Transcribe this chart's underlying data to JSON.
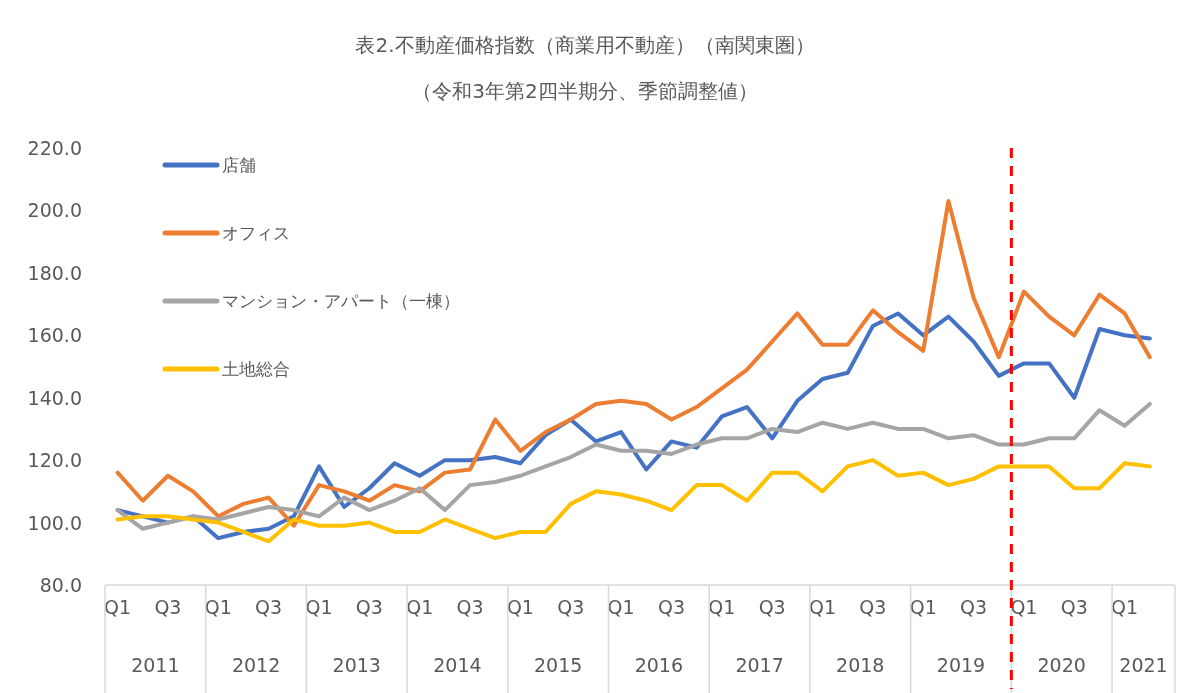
{
  "chart_data": {
    "type": "line",
    "title": "表2.不動産価格指数（商業用不動産）（南関東圏）",
    "subtitle": "（令和3年第2四半期分、季節調整値）",
    "categories": [
      "Q1",
      null,
      "Q3",
      null,
      "Q1",
      null,
      "Q3",
      null,
      "Q1",
      null,
      "Q3",
      null,
      "Q1",
      null,
      "Q3",
      null,
      "Q1",
      null,
      "Q3",
      null,
      "Q1",
      null,
      "Q3",
      null,
      "Q1",
      null,
      "Q3",
      null,
      "Q1",
      null,
      "Q3",
      null,
      "Q1",
      null,
      "Q3",
      null,
      "Q1",
      null,
      "Q3",
      null,
      "Q1",
      null
    ],
    "series": [
      {
        "name": "店舗",
        "color": "#4472c4",
        "values": [
          104,
          102,
          100,
          102,
          95,
          97,
          98,
          102,
          118,
          105,
          111,
          119,
          115,
          120,
          120,
          121,
          119,
          128,
          133,
          126,
          129,
          117,
          126,
          124,
          134,
          137,
          127,
          139,
          146,
          148,
          163,
          167,
          160,
          166,
          158,
          147,
          151,
          151,
          140,
          162,
          160,
          159
        ]
      },
      {
        "name": "オフィス",
        "color": "#ed7d31",
        "values": [
          116,
          107,
          115,
          110,
          102,
          106,
          108,
          99,
          112,
          110,
          107,
          112,
          110,
          116,
          117,
          133,
          123,
          129,
          133,
          138,
          139,
          138,
          133,
          137,
          143,
          149,
          158,
          167,
          157,
          157,
          168,
          161,
          155,
          203,
          172,
          153,
          174,
          166,
          160,
          173,
          167,
          153
        ]
      },
      {
        "name": "マンション・アパート（一棟）",
        "color": "#a5a5a5",
        "values": [
          104,
          98,
          100,
          102,
          101,
          103,
          105,
          104,
          102,
          108,
          104,
          107,
          111,
          104,
          112,
          113,
          115,
          118,
          121,
          125,
          123,
          123,
          122,
          125,
          127,
          127,
          130,
          129,
          132,
          130,
          132,
          130,
          130,
          127,
          128,
          125,
          125,
          127,
          127,
          136,
          131,
          138
        ]
      },
      {
        "name": "土地総合",
        "color": "#ffc000",
        "values": [
          101,
          102,
          102,
          101,
          100,
          97,
          94,
          101,
          99,
          99,
          100,
          97,
          97,
          101,
          98,
          95,
          97,
          97,
          106,
          110,
          109,
          107,
          104,
          112,
          112,
          107,
          116,
          116,
          110,
          118,
          120,
          115,
          116,
          112,
          114,
          118,
          118,
          118,
          111,
          111,
          119,
          118
        ]
      }
    ],
    "ylim": [
      80,
      220
    ],
    "yticks": [
      {
        "value": 80,
        "label": "80.0"
      },
      {
        "value": 100,
        "label": "100.0"
      },
      {
        "value": 120,
        "label": "120.0"
      },
      {
        "value": 140,
        "label": "140.0"
      },
      {
        "value": 160,
        "label": "160.0"
      },
      {
        "value": 180,
        "label": "180.0"
      },
      {
        "value": 200,
        "label": "200.0"
      },
      {
        "value": 220,
        "label": "220.0"
      }
    ],
    "annotations": [
      "2011",
      "2012",
      "2013",
      "2014",
      "2015",
      "2016",
      "2017",
      "2018",
      "2019",
      "2020",
      "2021"
    ],
    "grid": false,
    "legend": "top left",
    "line_style": "solid"
  }
}
